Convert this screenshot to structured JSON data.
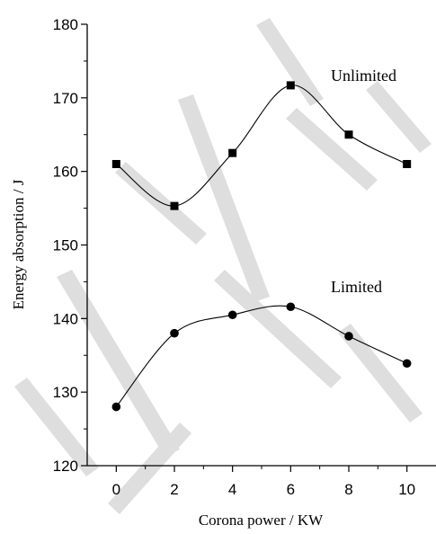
{
  "chart_data": {
    "type": "line",
    "title": "",
    "xlabel": "Corona power / KW",
    "ylabel": "Energy absorption / J",
    "xlim": [
      -1,
      11
    ],
    "ylim": [
      120,
      180
    ],
    "x_ticks": [
      "0",
      "2",
      "4",
      "6",
      "8",
      "10"
    ],
    "y_ticks": [
      "120",
      "130",
      "140",
      "150",
      "160",
      "170",
      "180"
    ],
    "grid": false,
    "legend": "none",
    "x": [
      0,
      2,
      4,
      6,
      8,
      10
    ],
    "series": [
      {
        "name": "Unlimited",
        "marker": "square",
        "values": [
          161.0,
          155.3,
          162.5,
          171.7,
          165.0,
          161.0
        ]
      },
      {
        "name": "Limited",
        "marker": "circle",
        "values": [
          128.0,
          138.0,
          140.5,
          141.6,
          137.6,
          133.9
        ]
      }
    ]
  }
}
